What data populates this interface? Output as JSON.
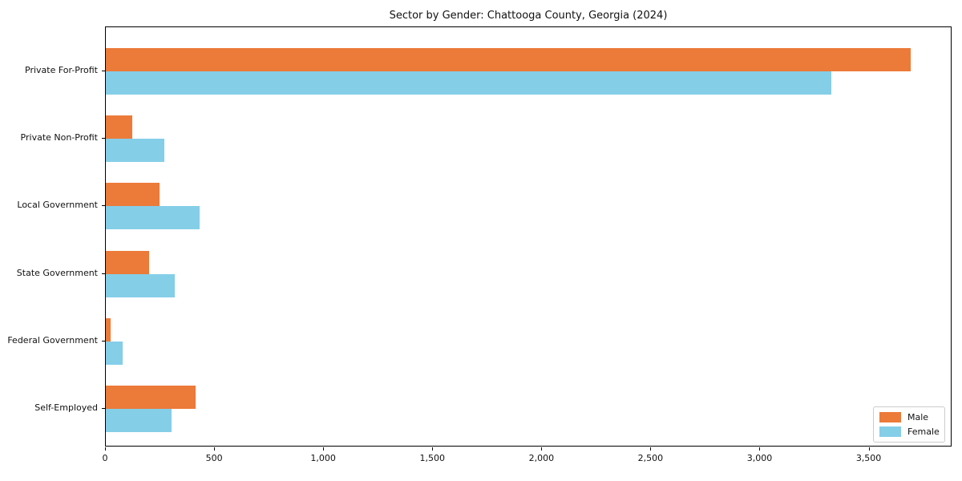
{
  "chart_data": {
    "type": "bar",
    "orientation": "horizontal",
    "title": "Sector by Gender: Chattooga County, Georgia (2024)",
    "categories": [
      "Private For-Profit",
      "Private Non-Profit",
      "Local Government",
      "State Government",
      "Federal Government",
      "Self-Employed"
    ],
    "series": [
      {
        "name": "Male",
        "color": "#ec7a39",
        "values": [
          3690,
          120,
          245,
          200,
          22,
          410
        ]
      },
      {
        "name": "Female",
        "color": "#85cee8",
        "values": [
          3325,
          270,
          430,
          315,
          76,
          300
        ]
      }
    ],
    "xlabel": "",
    "ylabel": "",
    "xlim": [
      0,
      3880
    ],
    "xticks": [
      0,
      500,
      1000,
      1500,
      2000,
      2500,
      3000,
      3500
    ],
    "xtick_labels": [
      "0",
      "500",
      "1,000",
      "1,500",
      "2,000",
      "2,500",
      "3,000",
      "3,500"
    ],
    "grid": false,
    "legend_position": "lower right",
    "legend_border_color": "#cccccc",
    "axis_color": "#000000",
    "background_color": "#ffffff"
  }
}
